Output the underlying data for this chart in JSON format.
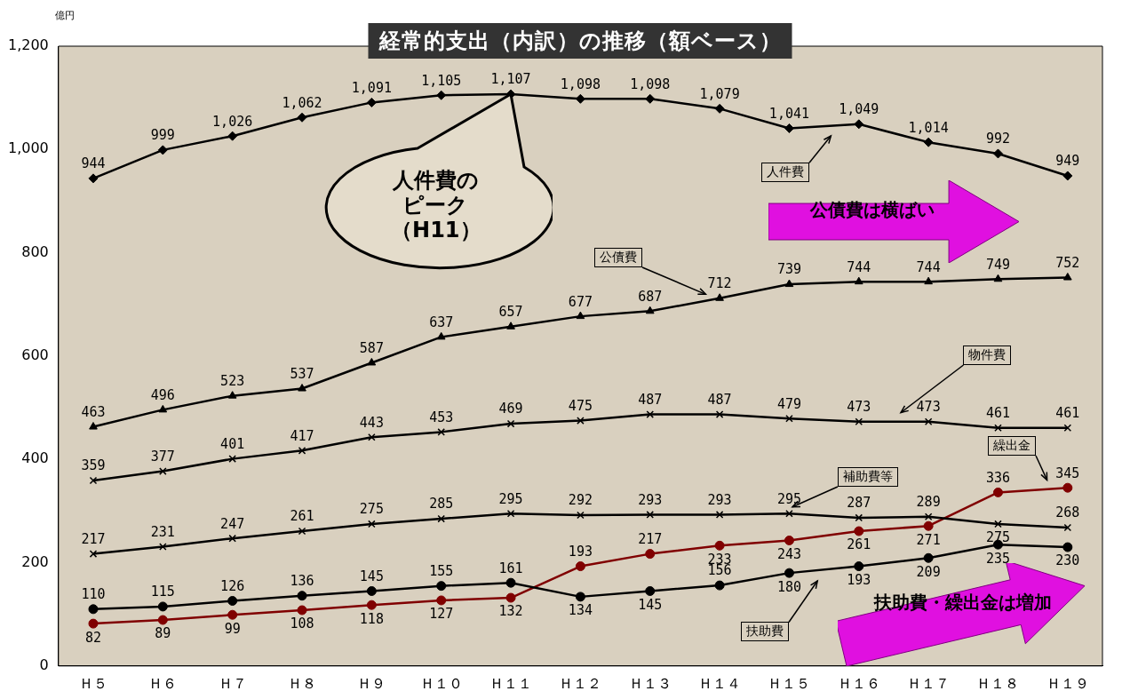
{
  "chart_data": {
    "type": "line",
    "title": "経常的支出（内訳）の推移（額ベース）",
    "ylabel": "億円",
    "categories": [
      "Ｈ５",
      "Ｈ６",
      "Ｈ７",
      "Ｈ８",
      "Ｈ９",
      "Ｈ１０",
      "Ｈ１１",
      "Ｈ１２",
      "Ｈ１３",
      "Ｈ１４",
      "Ｈ１５",
      "Ｈ１６",
      "Ｈ１７",
      "Ｈ１８",
      "Ｈ１９"
    ],
    "series": [
      {
        "name": "人件費",
        "color": "#000000",
        "marker": "diamond",
        "values": [
          944,
          999,
          1026,
          1062,
          1091,
          1105,
          1107,
          1098,
          1098,
          1079,
          1041,
          1049,
          1014,
          992,
          949
        ],
        "value_labels": [
          "944",
          "999",
          "1,026",
          "1,062",
          "1,091",
          "1,105",
          "1,107",
          "1,098",
          "1,098",
          "1,079",
          "1,041",
          "1,049",
          "1,014",
          "992",
          "949"
        ]
      },
      {
        "name": "公債費",
        "color": "#000000",
        "marker": "triangle",
        "values": [
          463,
          496,
          523,
          537,
          587,
          637,
          657,
          677,
          687,
          712,
          739,
          744,
          744,
          749,
          752
        ]
      },
      {
        "name": "物件費",
        "color": "#000000",
        "marker": "cross",
        "values": [
          359,
          377,
          401,
          417,
          443,
          453,
          469,
          475,
          487,
          487,
          479,
          473,
          473,
          461,
          461
        ]
      },
      {
        "name": "補助費等",
        "color": "#000000",
        "marker": "cross",
        "values": [
          217,
          231,
          247,
          261,
          275,
          285,
          295,
          292,
          293,
          293,
          295,
          287,
          289,
          275,
          268
        ]
      },
      {
        "name": "扶助費",
        "color": "#000000",
        "marker": "circle",
        "values": [
          110,
          115,
          126,
          136,
          145,
          155,
          161,
          134,
          145,
          156,
          180,
          193,
          209,
          235,
          230
        ]
      },
      {
        "name": "繰出金",
        "color": "#800000",
        "marker": "circle",
        "values": [
          82,
          89,
          99,
          108,
          118,
          127,
          132,
          193,
          217,
          233,
          243,
          261,
          271,
          336,
          345
        ]
      }
    ],
    "ylim": [
      0,
      1200
    ],
    "yticks": [
      0,
      200,
      400,
      600,
      800,
      {
        "value": 1000,
        "label": "1,000"
      },
      {
        "value": 1200,
        "label": "1,200"
      }
    ],
    "data_labels": true,
    "legend": false,
    "grid": false,
    "line_style": "solid",
    "annotations": [
      "人件費のピーク（H11）",
      "公債費は横ばい",
      "扶助費・繰出金は増加"
    ]
  }
}
